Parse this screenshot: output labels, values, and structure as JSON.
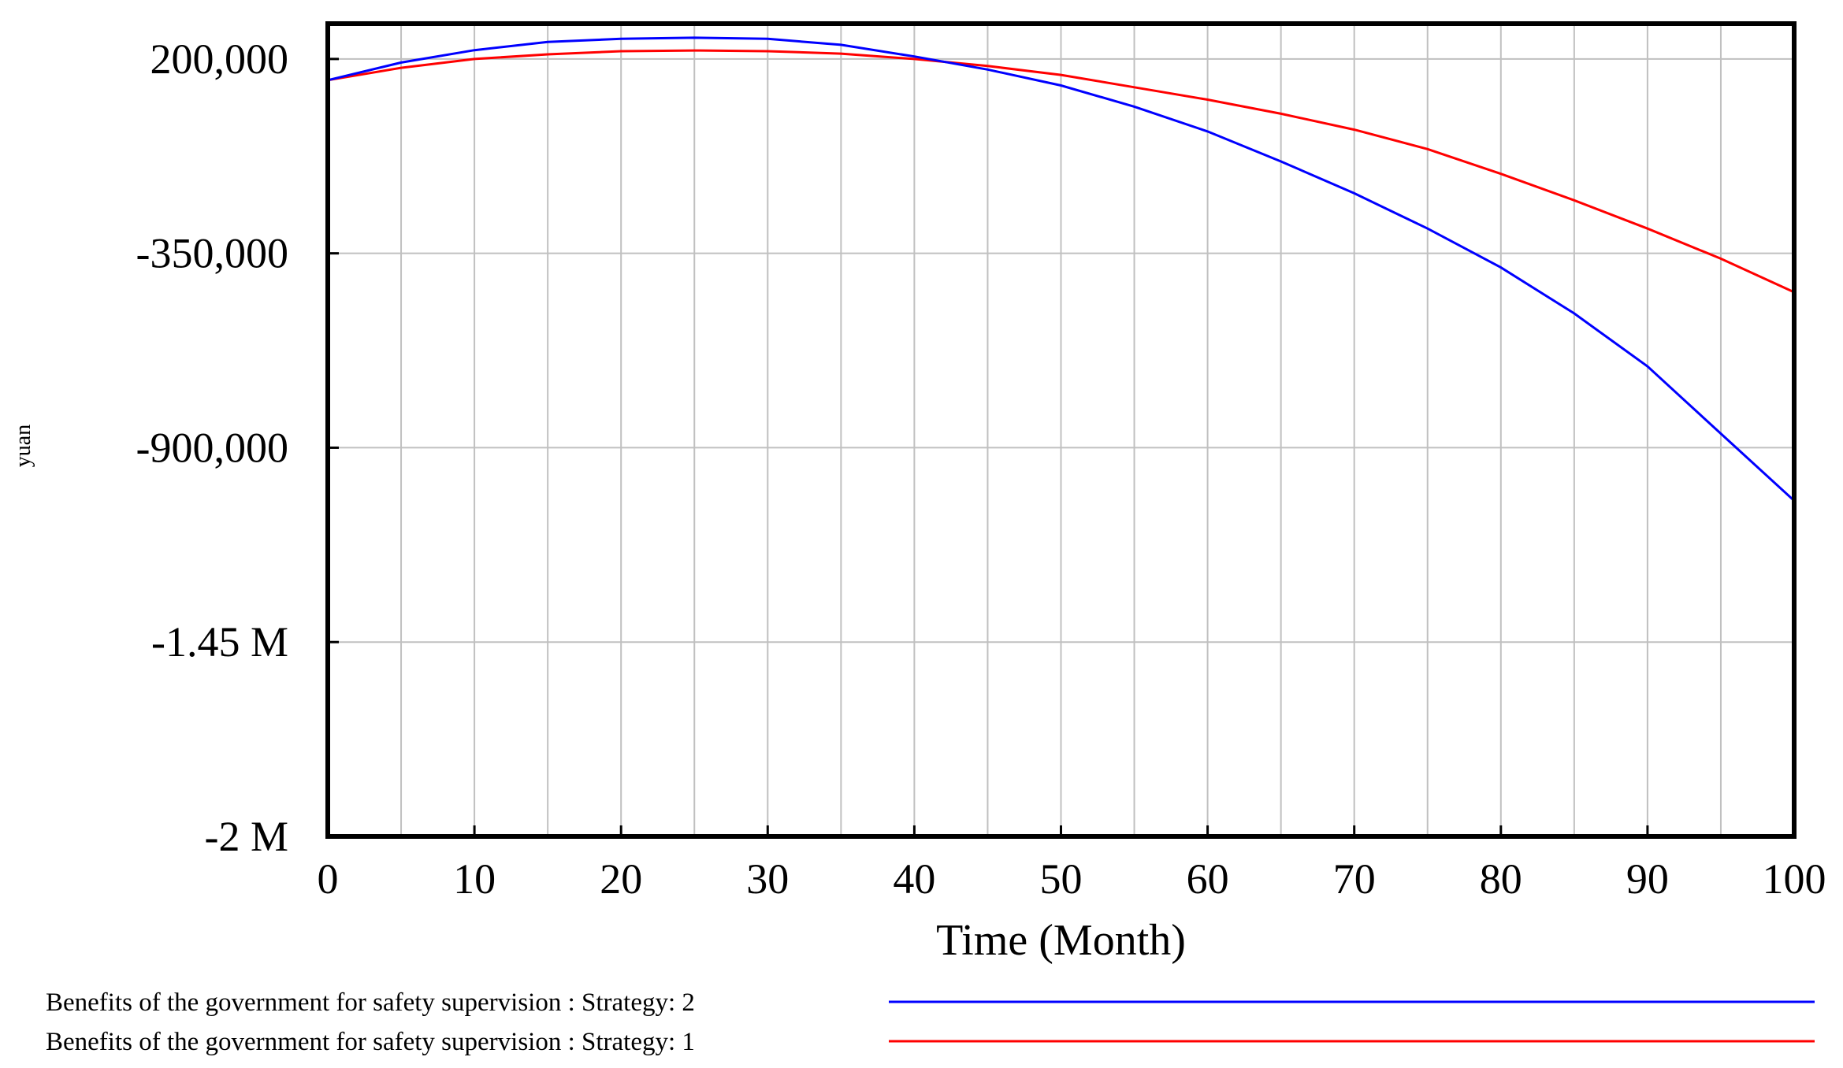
{
  "chart_data": {
    "type": "line",
    "title": "",
    "xlabel": "Time (Month)",
    "ylabel": "yuan",
    "xlim": [
      0,
      100
    ],
    "ylim": [
      -2000000,
      300000
    ],
    "x_ticks": [
      0,
      10,
      20,
      30,
      40,
      50,
      60,
      70,
      80,
      90,
      100
    ],
    "x_tick_labels": [
      "0",
      "10",
      "20",
      "30",
      "40",
      "50",
      "60",
      "70",
      "80",
      "90",
      "100"
    ],
    "y_ticks": [
      200000,
      -350000,
      -900000,
      -1450000,
      -2000000
    ],
    "y_tick_labels": [
      "200,000",
      "-350,000",
      "-900,000",
      "-1.45 M",
      "-2 M"
    ],
    "grid": true,
    "legend_position": "bottom",
    "x": [
      0,
      5,
      10,
      15,
      20,
      25,
      30,
      35,
      40,
      45,
      50,
      55,
      60,
      65,
      70,
      75,
      80,
      85,
      90,
      95,
      100
    ],
    "series": [
      {
        "name": "Benefits of the government for safety supervision : Strategy: 2",
        "color": "#0000ff",
        "values": [
          140000,
          190000,
          225000,
          248000,
          257000,
          260000,
          257000,
          240000,
          207000,
          170000,
          125000,
          65000,
          -5000,
          -90000,
          -180000,
          -280000,
          -390000,
          -520000,
          -670000,
          -860000,
          -1050000
        ]
      },
      {
        "name": "Benefits of the government for safety supervision : Strategy: 1",
        "color": "#ff0000",
        "values": [
          140000,
          175000,
          200000,
          213000,
          222000,
          224000,
          222000,
          215000,
          200000,
          180000,
          155000,
          120000,
          85000,
          45000,
          0,
          -55000,
          -125000,
          -200000,
          -280000,
          -365000,
          -460000
        ]
      }
    ]
  }
}
